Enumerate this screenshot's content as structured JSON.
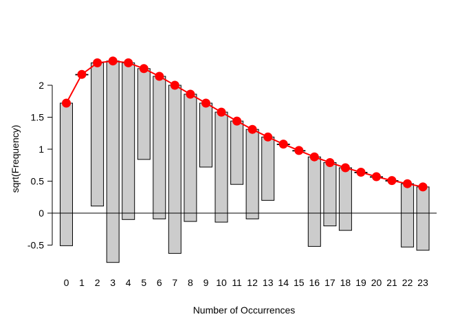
{
  "chart_data": {
    "type": "bar",
    "subtype": "hanging-rootogram",
    "xlabel": "Number of Occurrences",
    "ylabel": "sqrt(Frequency)",
    "ylim": [
      -0.78,
      2.42
    ],
    "y_ticks": [
      -0.5,
      0,
      0.5,
      1,
      1.5,
      2
    ],
    "y_tick_labels": [
      "-0.5",
      "0",
      "0.5",
      "1",
      "1.5",
      "2"
    ],
    "reference_line": 0,
    "categories": [
      "0",
      "1",
      "2",
      "3",
      "4",
      "5",
      "6",
      "7",
      "8",
      "9",
      "10",
      "11",
      "12",
      "13",
      "14",
      "15",
      "16",
      "17",
      "18",
      "19",
      "20",
      "21",
      "22",
      "23"
    ],
    "series": [
      {
        "role": "bars",
        "fitted_top": [
          1.72,
          2.17,
          2.35,
          2.38,
          2.35,
          2.26,
          2.14,
          2.0,
          1.86,
          1.72,
          1.58,
          1.44,
          1.31,
          1.19,
          1.08,
          0.98,
          0.88,
          0.79,
          0.71,
          0.64,
          0.57,
          0.51,
          0.46,
          0.41
        ],
        "bottom": [
          -0.51,
          2.17,
          0.11,
          -0.77,
          -0.1,
          0.84,
          -0.09,
          -0.63,
          -0.13,
          0.72,
          -0.14,
          0.45,
          -0.09,
          0.2,
          1.08,
          0.98,
          -0.52,
          -0.2,
          -0.27,
          0.64,
          0.57,
          0.51,
          -0.53,
          -0.58
        ]
      },
      {
        "role": "expected-line",
        "color": "#ff0000",
        "values": [
          1.72,
          2.17,
          2.35,
          2.38,
          2.35,
          2.26,
          2.14,
          2.0,
          1.86,
          1.72,
          1.58,
          1.44,
          1.31,
          1.19,
          1.08,
          0.98,
          0.88,
          0.79,
          0.71,
          0.64,
          0.57,
          0.51,
          0.46,
          0.41
        ]
      }
    ],
    "bar_fill": "#cccccc",
    "grid": false,
    "legend": "none"
  }
}
